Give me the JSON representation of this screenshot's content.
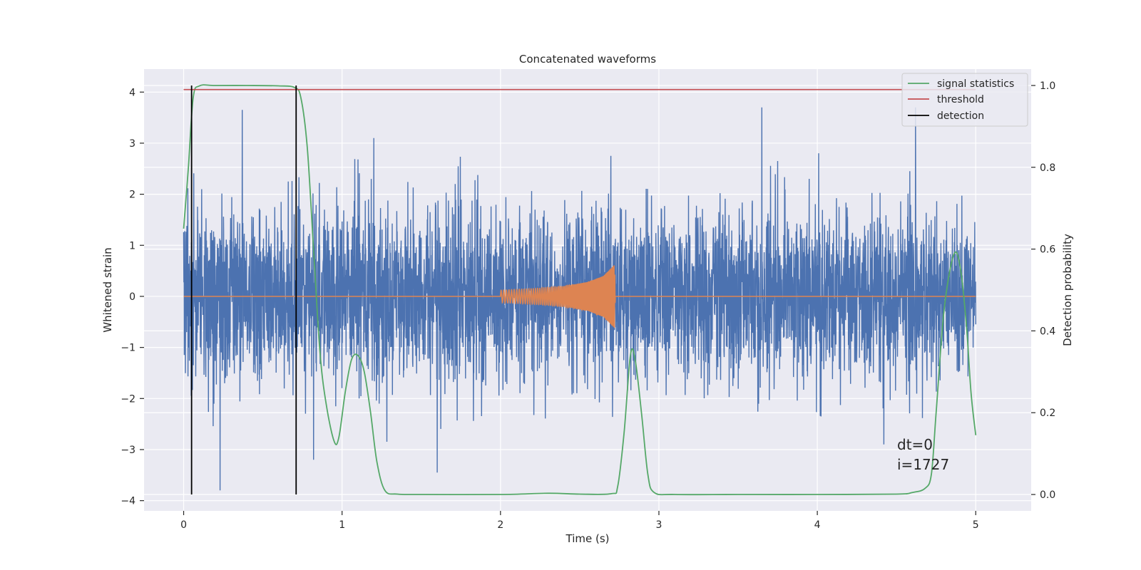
{
  "chart_data": {
    "type": "line",
    "title": "Concatenated waveforms",
    "xlabel": "Time (s)",
    "ylabel": "Whitened strain",
    "ylabel_right": "Detection probability",
    "xlim": [
      -0.25,
      5.35
    ],
    "ylim": [
      -4.2,
      4.45
    ],
    "ylim_right": [
      -0.04,
      1.04
    ],
    "xticks": [
      0,
      1,
      2,
      3,
      4,
      5
    ],
    "yticks": [
      -4,
      -3,
      -2,
      -1,
      0,
      1,
      2,
      3,
      4
    ],
    "yticks_right": [
      0.0,
      0.2,
      0.4,
      0.6,
      0.8,
      1.0
    ],
    "xtick_labels": [
      "0",
      "1",
      "2",
      "3",
      "4",
      "5"
    ],
    "ytick_labels": [
      "−4",
      "−3",
      "−2",
      "−1",
      "0",
      "1",
      "2",
      "3",
      "4"
    ],
    "ytick_labels_right": [
      "0.0",
      "0.2",
      "0.4",
      "0.6",
      "0.8",
      "1.0"
    ],
    "grid": true,
    "legend_position": "top-right",
    "colors": {
      "noise": "#4c72b0",
      "waveform": "#dd8452",
      "signal_statistics": "#55a868",
      "threshold": "#c44e52",
      "detection": "#000000",
      "axes_bg": "#eaeaf2",
      "grid": "#ffffff"
    },
    "legend": [
      {
        "label": "signal statistics",
        "color": "#55a868"
      },
      {
        "label": "threshold",
        "color": "#c44e52"
      },
      {
        "label": "detection",
        "color": "#000000"
      }
    ],
    "whitened_strain_noise": {
      "x_range": [
        0,
        5
      ],
      "envelope_typical": 1.6,
      "max_peaks": [
        {
          "x": 0.37,
          "y": 3.65
        },
        {
          "x": 1.2,
          "y": 3.1
        },
        {
          "x": 3.65,
          "y": 3.7
        },
        {
          "x": 4.62,
          "y": 3.7
        },
        {
          "x": 0.23,
          "y": -3.8
        },
        {
          "x": 1.6,
          "y": -3.45
        },
        {
          "x": 0.82,
          "y": -3.2
        }
      ]
    },
    "injected_waveform": {
      "x": [
        2.0,
        2.2,
        2.4,
        2.55,
        2.65,
        2.72,
        2.725,
        2.8,
        3.0,
        5.0
      ],
      "amplitude": [
        0.12,
        0.15,
        0.2,
        0.28,
        0.4,
        0.62,
        0.0,
        0.0,
        0.0,
        0.0
      ]
    },
    "signal_statistics": {
      "x": [
        0.0,
        0.03,
        0.06,
        0.1,
        0.2,
        0.4,
        0.6,
        0.7,
        0.74,
        0.78,
        0.82,
        0.86,
        0.9,
        0.95,
        0.98,
        1.02,
        1.06,
        1.1,
        1.14,
        1.18,
        1.22,
        1.27,
        1.35,
        1.5,
        2.0,
        2.3,
        2.5,
        2.7,
        2.74,
        2.78,
        2.82,
        2.85,
        2.89,
        2.93,
        2.97,
        3.1,
        3.5,
        4.0,
        4.5,
        4.6,
        4.68,
        4.72,
        4.75,
        4.8,
        4.86,
        4.9,
        4.94,
        4.97,
        5.0
      ],
      "y": [
        0.65,
        0.8,
        0.97,
        0.999,
        1.0,
        1.0,
        0.999,
        0.995,
        0.97,
        0.85,
        0.6,
        0.35,
        0.22,
        0.13,
        0.14,
        0.25,
        0.33,
        0.34,
        0.3,
        0.2,
        0.08,
        0.01,
        0.001,
        0.0,
        0.0,
        0.003,
        0.001,
        0.002,
        0.02,
        0.15,
        0.34,
        0.33,
        0.2,
        0.05,
        0.005,
        0.0,
        0.0,
        0.0,
        0.001,
        0.005,
        0.015,
        0.05,
        0.2,
        0.45,
        0.585,
        0.56,
        0.42,
        0.25,
        0.145
      ]
    },
    "threshold": {
      "x": [
        0,
        5
      ],
      "y": 0.99
    },
    "detections": [
      0.05,
      0.71
    ],
    "annotation": {
      "line1": "dt=0",
      "line2": "i=1727"
    }
  }
}
